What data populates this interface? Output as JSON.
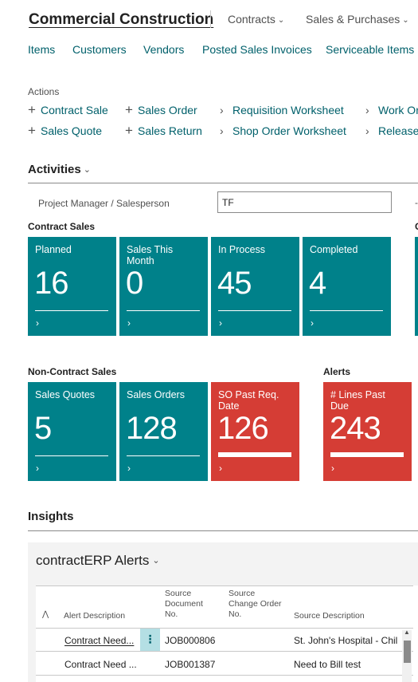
{
  "header": {
    "company": "Commercial Construction",
    "menus": [
      "Contracts",
      "Sales & Purchases"
    ]
  },
  "nav": [
    "Items",
    "Customers",
    "Vendors",
    "Posted Sales Invoices",
    "Serviceable Items"
  ],
  "actions": {
    "label": "Actions",
    "items": [
      {
        "label": "Contract Sale",
        "icon": "plus-icon"
      },
      {
        "label": "Sales Order",
        "icon": "plus-icon"
      },
      {
        "label": "Requisition Worksheet",
        "icon": "chevron-right-icon"
      },
      {
        "label": "Work Or",
        "icon": "chevron-right-icon"
      },
      {
        "label": "Sales Quote",
        "icon": "plus-icon"
      },
      {
        "label": "Sales Return",
        "icon": "plus-icon"
      },
      {
        "label": "Shop Order Worksheet",
        "icon": "chevron-right-icon"
      },
      {
        "label": "Release",
        "icon": "chevron-right-icon"
      }
    ]
  },
  "activities": {
    "title": "Activities",
    "filter_label": "Project Manager / Salesperson",
    "filter_value": "TF",
    "edge_tick": "-",
    "contract_sales": {
      "label": "Contract Sales",
      "tiles": [
        {
          "label": "Planned",
          "value": "16"
        },
        {
          "label": "Sales This Month",
          "value": "0"
        },
        {
          "label": "In Process",
          "value": "45"
        },
        {
          "label": "Completed",
          "value": "4"
        }
      ]
    },
    "edge_group_label": "C",
    "non_contract_sales": {
      "label": "Non-Contract Sales",
      "tiles": [
        {
          "label": "Sales Quotes",
          "value": "5"
        },
        {
          "label": "Sales Orders",
          "value": "128"
        },
        {
          "label": "SO Past Req. Date",
          "value": "126"
        }
      ]
    },
    "alerts": {
      "label": "Alerts",
      "tiles": [
        {
          "label": "# Lines Past Due",
          "value": "243"
        }
      ]
    }
  },
  "insights": {
    "title": "Insights",
    "panel_title": "contractERP Alerts",
    "columns": [
      "Alert Description",
      "Source Document No.",
      "Source Change Order No.",
      "Source Description"
    ],
    "rows": [
      {
        "alert": "Contract Need...",
        "doc": "JOB000806",
        "change": "",
        "desc": "St. John's Hospital - Chil"
      },
      {
        "alert": "Contract Need ...",
        "doc": "JOB001387",
        "change": "",
        "desc": "Need to Bill test"
      }
    ]
  },
  "colors": {
    "tile_teal": "#00818a",
    "tile_red": "#d53d35",
    "link": "#00606b"
  }
}
